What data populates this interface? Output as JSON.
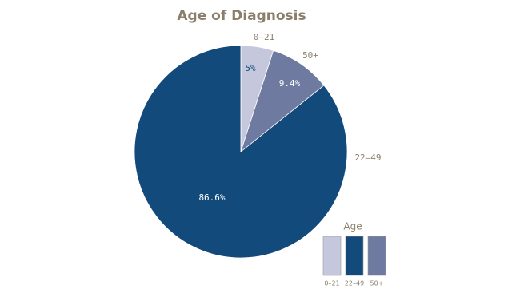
{
  "chart_data": {
    "type": "pie",
    "title": "Age of Diagnosis",
    "categories": [
      "0–21",
      "22–49",
      "50+"
    ],
    "values": [
      5,
      86.6,
      9.4
    ],
    "value_labels": [
      "5%",
      "86.6%",
      "9.4%"
    ],
    "colors": [
      "#c5c8dc",
      "#134a7c",
      "#6e7aa0"
    ],
    "legend_title": "Age"
  }
}
